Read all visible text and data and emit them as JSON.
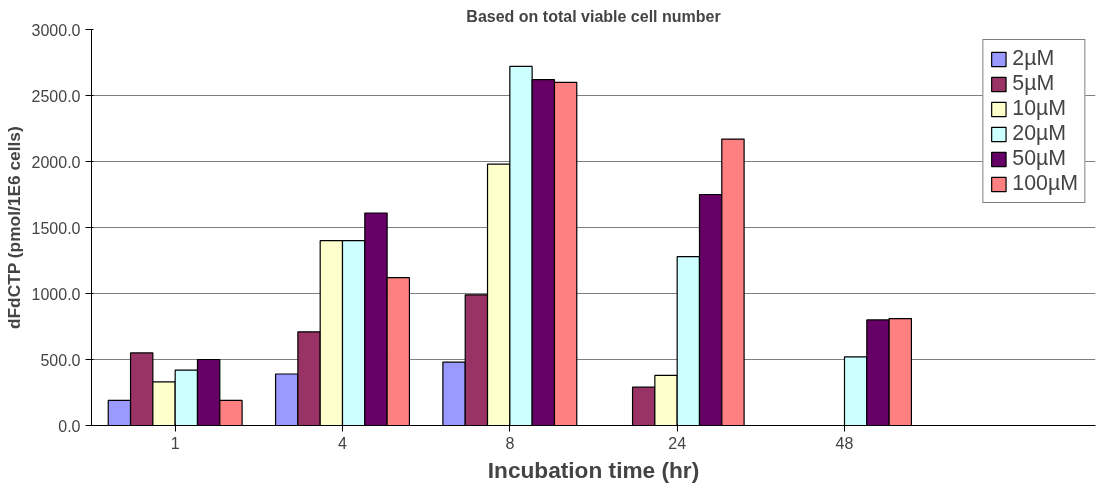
{
  "chart_data": {
    "type": "bar",
    "title": "Based on total viable cell number",
    "xlabel": "Incubation time (hr)",
    "ylabel": "dFdCTP (pmol/1E6 cells)",
    "categories": [
      "1",
      "4",
      "8",
      "24",
      "48"
    ],
    "series": [
      {
        "name": "2µM",
        "color": "#9999ff",
        "values": [
          190,
          390,
          480,
          null,
          null
        ]
      },
      {
        "name": "5µM",
        "color": "#993366",
        "values": [
          550,
          710,
          990,
          290,
          null
        ]
      },
      {
        "name": "10µM",
        "color": "#ffffcc",
        "values": [
          330,
          1400,
          1980,
          380,
          null
        ]
      },
      {
        "name": "20µM",
        "color": "#ccffff",
        "values": [
          420,
          1400,
          2720,
          1280,
          520
        ]
      },
      {
        "name": "50µM",
        "color": "#660066",
        "values": [
          500,
          1610,
          2620,
          1750,
          800
        ]
      },
      {
        "name": "100µM",
        "color": "#ff8080",
        "values": [
          190,
          1120,
          2600,
          2170,
          810
        ]
      }
    ],
    "ylim": [
      0,
      3000
    ],
    "yticks": [
      {
        "value": 0,
        "label": "0.0"
      },
      {
        "value": 500,
        "label": "500.0"
      },
      {
        "value": 1000,
        "label": "1000.0"
      },
      {
        "value": 1500,
        "label": "1500.0"
      },
      {
        "value": 2000,
        "label": "2000.0"
      },
      {
        "value": 2500,
        "label": "2500.0"
      },
      {
        "value": 3000,
        "label": "3000.0"
      }
    ],
    "grid": "y",
    "legend": "top right"
  }
}
